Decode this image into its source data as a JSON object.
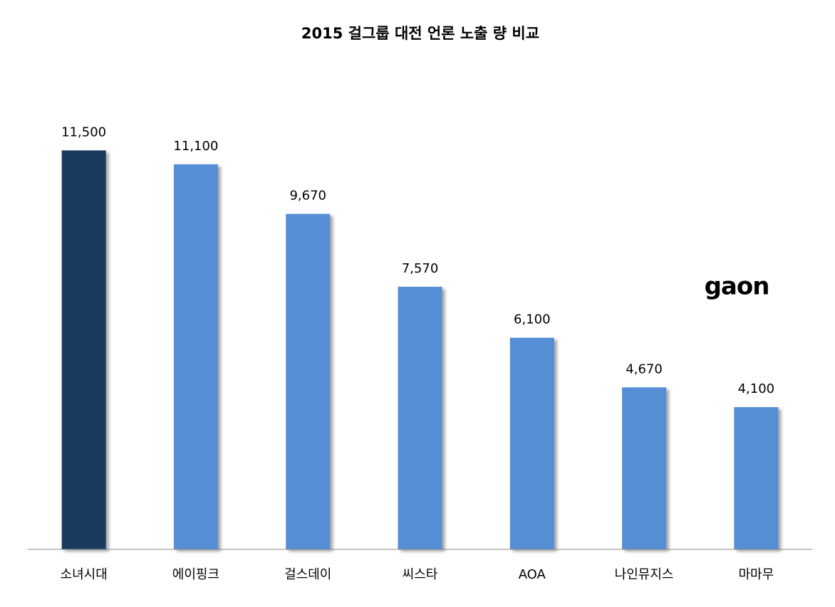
{
  "chart_data": {
    "type": "bar",
    "title": "2015 걸그룹 대전 언론 노출 량 비교",
    "categories": [
      "소녀시대",
      "에이핑크",
      "걸스데이",
      "씨스타",
      "AOA",
      "나인뮤지스",
      "마마무"
    ],
    "values": [
      11500,
      11100,
      9670,
      7570,
      6100,
      4670,
      4100
    ],
    "value_labels": [
      "11,500",
      "11,100",
      "9,670",
      "7,570",
      "6,100",
      "4,670",
      "4,100"
    ],
    "colors": [
      "#1a3a5e",
      "#558ed5",
      "#558ed5",
      "#558ed5",
      "#558ed5",
      "#558ed5",
      "#558ed5"
    ],
    "ylim": [
      0,
      12000
    ],
    "logo": "gaon"
  }
}
